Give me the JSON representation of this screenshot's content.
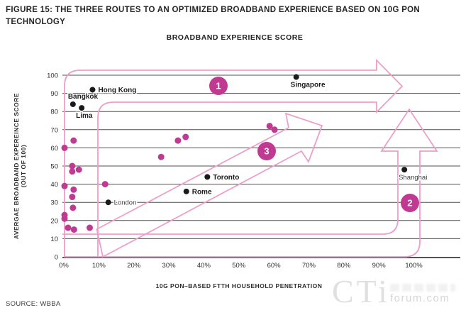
{
  "figure_title": "FIGURE 15: THE THREE ROUTES TO AN OPTIMIZED BROADBAND EXPERIENCE BASED ON 10G PON TECHNOLOGY",
  "source": "SOURCE: WBBA",
  "watermark": {
    "brand": "CTi",
    "domain": "forum.com"
  },
  "colors": {
    "accent_magenta": "#c03a92",
    "route_pink": "#ed9fca",
    "point_black": "#1a1a1a",
    "gridline": "#4f4f4f"
  },
  "chart_data": {
    "type": "scatter",
    "title": "BROADBAND EXPERIENCE SCORE",
    "xlabel": "10G PON–BASED FTTH HOUSEHOLD PENETRATION",
    "ylabel_line1": "AVERGAE BROADBAND EXPEREINCE SCORE",
    "ylabel_line2": "(OUT OF 100)",
    "xlim": [
      0,
      100
    ],
    "ylim": [
      0,
      100
    ],
    "grid": true,
    "x_ticks": [
      "0%",
      "10%",
      "20%",
      "30%",
      "40%",
      "50%",
      "60%",
      "70%",
      "80%",
      "90%",
      "100%"
    ],
    "y_ticks": [
      0,
      10,
      20,
      30,
      40,
      50,
      60,
      70,
      80,
      90,
      100
    ],
    "route_badges": [
      "1",
      "2",
      "3"
    ],
    "series": [
      {
        "name": "labeled-cities",
        "color": "#1a1a1a",
        "points": [
          {
            "label": "Hong Kong",
            "x": 8.2,
            "y": 92,
            "pos": "right",
            "bold": true
          },
          {
            "label": "Bangkok",
            "x": 2.6,
            "y": 84,
            "pos": "above",
            "bold": true
          },
          {
            "label": "Lima",
            "x": 5.1,
            "y": 82,
            "pos": "below",
            "bold": true
          },
          {
            "label": "Singapore",
            "x": 66.4,
            "y": 99,
            "pos": "below",
            "bold": true
          },
          {
            "label": "Toronto",
            "x": 41.0,
            "y": 44,
            "pos": "right",
            "bold": true
          },
          {
            "label": "Rome",
            "x": 35.0,
            "y": 36,
            "pos": "right",
            "bold": true
          },
          {
            "label": "London",
            "x": 12.7,
            "y": 30,
            "pos": "right",
            "bold": false
          },
          {
            "label": "Shanghai",
            "x": 97.3,
            "y": 48,
            "pos": "below",
            "bold": false
          }
        ]
      },
      {
        "name": "unlabeled-markets",
        "color": "#c03a92",
        "points": [
          {
            "x": 2.8,
            "y": 64
          },
          {
            "x": 0.2,
            "y": 60
          },
          {
            "x": 2.4,
            "y": 50
          },
          {
            "x": 2.4,
            "y": 47
          },
          {
            "x": 4.3,
            "y": 48
          },
          {
            "x": 0.2,
            "y": 39
          },
          {
            "x": 2.8,
            "y": 37
          },
          {
            "x": 11.8,
            "y": 40
          },
          {
            "x": 2.4,
            "y": 33
          },
          {
            "x": 2.6,
            "y": 27
          },
          {
            "x": 0.2,
            "y": 23
          },
          {
            "x": 0.2,
            "y": 21
          },
          {
            "x": 1.2,
            "y": 16
          },
          {
            "x": 2.9,
            "y": 15
          },
          {
            "x": 7.4,
            "y": 16
          },
          {
            "x": 27.8,
            "y": 55
          },
          {
            "x": 32.6,
            "y": 64
          },
          {
            "x": 34.8,
            "y": 66
          },
          {
            "x": 58.8,
            "y": 72
          },
          {
            "x": 60.2,
            "y": 70
          }
        ]
      }
    ]
  }
}
